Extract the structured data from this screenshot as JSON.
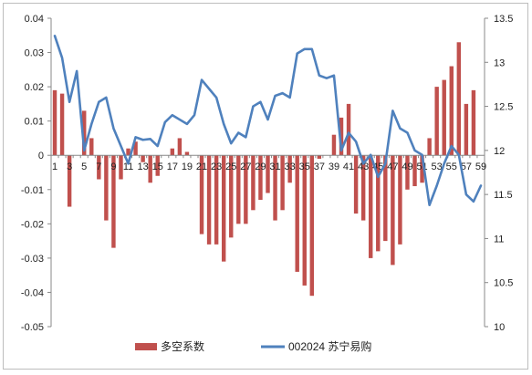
{
  "chart_data": {
    "type": "bar+line",
    "title": "",
    "xlabel": "",
    "x_tick_labels": [
      "1",
      "3",
      "5",
      "7",
      "9",
      "11",
      "13",
      "15",
      "17",
      "19",
      "21",
      "23",
      "25",
      "27",
      "29",
      "31",
      "33",
      "35",
      "37",
      "39",
      "41",
      "43",
      "45",
      "47",
      "49",
      "51",
      "53",
      "55",
      "57",
      "59"
    ],
    "left_axis": {
      "ylim": [
        -0.05,
        0.04
      ],
      "ticks": [
        "-0.05",
        "-0.04",
        "-0.03",
        "-0.02",
        "-0.01",
        "0",
        "0.01",
        "0.02",
        "0.03",
        "0.04"
      ]
    },
    "right_axis": {
      "ylim": [
        10,
        13.5
      ],
      "ticks": [
        "10",
        "10.5",
        "11",
        "11.5",
        "12",
        "12.5",
        "13",
        "13.5"
      ]
    },
    "grid": false,
    "legend_position": "bottom",
    "series": [
      {
        "name": "多空系数",
        "kind": "bar",
        "axis": "left",
        "color": "#c0504d",
        "values": [
          0.019,
          0.018,
          -0.015,
          0.0,
          0.013,
          0.005,
          -0.007,
          -0.019,
          -0.027,
          -0.007,
          0.002,
          0.004,
          -0.002,
          -0.008,
          -0.006,
          0.0,
          0.002,
          0.005,
          0.001,
          0.0,
          -0.023,
          -0.026,
          -0.026,
          -0.031,
          -0.024,
          -0.02,
          -0.02,
          -0.016,
          -0.013,
          -0.011,
          -0.019,
          -0.016,
          -0.008,
          -0.034,
          -0.038,
          -0.041,
          -0.001,
          0.0,
          0.006,
          0.011,
          0.015,
          -0.017,
          -0.019,
          -0.03,
          -0.028,
          -0.025,
          -0.032,
          -0.026,
          -0.01,
          -0.009,
          -0.008,
          0.005,
          0.02,
          0.022,
          0.026,
          0.033,
          0.015,
          0.019,
          0.0
        ]
      },
      {
        "name": "002024 苏宁易购",
        "kind": "line",
        "axis": "right",
        "color": "#4f81bd",
        "values": [
          13.3,
          13.05,
          12.55,
          12.9,
          12.0,
          12.3,
          12.55,
          12.6,
          12.25,
          12.05,
          11.85,
          12.15,
          12.12,
          12.13,
          12.05,
          12.32,
          12.4,
          12.35,
          12.3,
          12.4,
          12.8,
          12.7,
          12.6,
          12.3,
          12.08,
          12.2,
          12.15,
          12.5,
          12.55,
          12.35,
          12.62,
          12.65,
          12.6,
          13.1,
          13.15,
          13.15,
          12.85,
          12.82,
          12.85,
          12.0,
          12.2,
          12.1,
          11.85,
          11.95,
          11.7,
          11.85,
          12.45,
          12.25,
          12.2,
          12.0,
          11.95,
          11.38,
          11.6,
          11.85,
          12.05,
          11.95,
          11.5,
          11.42,
          11.6
        ]
      }
    ]
  }
}
